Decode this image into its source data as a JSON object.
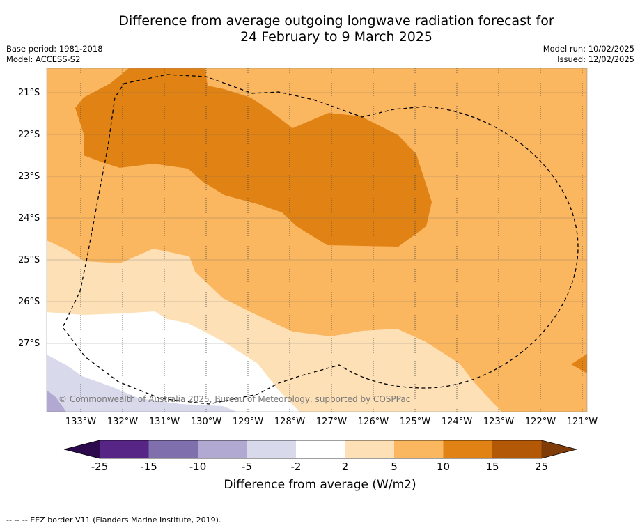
{
  "title_line1": "Difference from average outgoing longwave radiation forecast for",
  "title_line2": "24 February to 9 March 2025",
  "base_period": "Base period: 1981-2018",
  "model": "Model: ACCESS-S2",
  "model_run": "Model run: 10/02/2025",
  "issued": "Issued: 12/02/2025",
  "lat_labels": [
    "21°S",
    "22°S",
    "23°S",
    "24°S",
    "25°S",
    "26°S",
    "27°S"
  ],
  "lon_labels": [
    "133°W",
    "132°W",
    "131°W",
    "130°W",
    "129°W",
    "128°W",
    "127°W",
    "126°W",
    "125°W",
    "124°W",
    "123°W",
    "122°W",
    "121°W"
  ],
  "copyright": "© Commonwealth of Australia 2025, Bureau of Meteorology, supported by COSPPac",
  "colorbar": {
    "title": "Difference from average (W/m2)",
    "ticks": [
      "-25",
      "-15",
      "-10",
      "-5",
      "-2",
      "2",
      "5",
      "10",
      "15",
      "25"
    ],
    "colors": [
      "#2d0a4e",
      "#562585",
      "#7f6fac",
      "#b1a9d1",
      "#d9d9ec",
      "#ffffff",
      "#fee0b6",
      "#fbb660",
      "#e08214",
      "#b35806",
      "#7f3b08"
    ]
  },
  "footer": "--  --  -- EEZ border V11 (Flanders Marine Institute, 2019)."
}
